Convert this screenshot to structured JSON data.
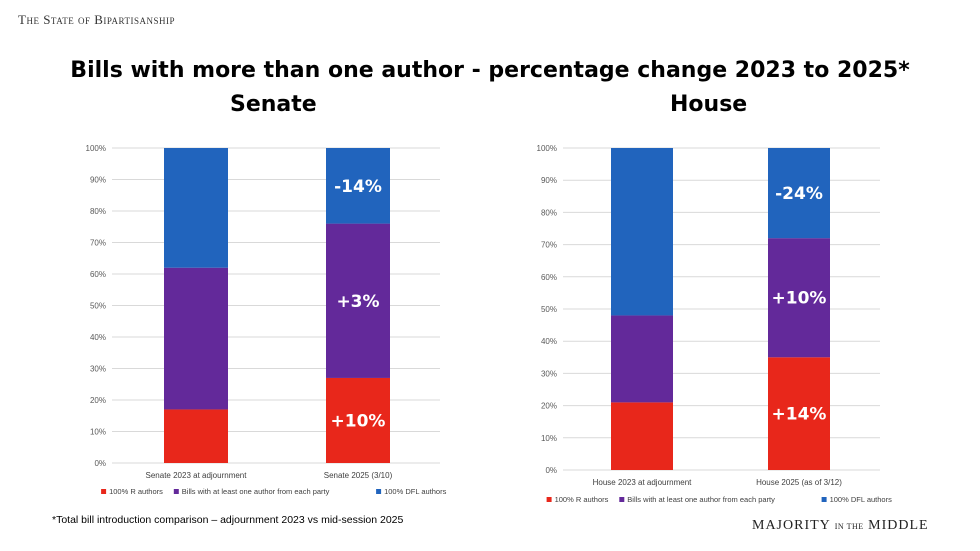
{
  "header": {
    "tag": "The State of Bipartisanship"
  },
  "title": "Bills with more than one author - percentage change 2023 to 2025*",
  "footnote": "*Total bill introduction comparison – adjournment 2023 vs mid-session 2025",
  "brand": {
    "main1": "MAJORITY",
    "small": "IN THE",
    "main2": "MIDDLE"
  },
  "colors": {
    "r": "#e8271b",
    "both": "#63299a",
    "dfl": "#2164bd"
  },
  "chart_data": [
    {
      "type": "bar",
      "stacked": true,
      "title": "Senate",
      "categories": [
        "Senate 2023 at adjournment",
        "Senate 2025 (3/10)"
      ],
      "ylim": [
        0,
        100
      ],
      "yticks": [
        "0%",
        "10%",
        "20%",
        "30%",
        "40%",
        "50%",
        "60%",
        "70%",
        "80%",
        "90%",
        "100%"
      ],
      "grid": true,
      "legend_position": "bottom",
      "series": [
        {
          "name": "100% R authors",
          "color": "#e8271b",
          "values": [
            17,
            27
          ],
          "labels": [
            "",
            "+10%"
          ]
        },
        {
          "name": "Bills with at least one author from each party",
          "color": "#63299a",
          "values": [
            45,
            49
          ],
          "labels": [
            "",
            "+3%"
          ]
        },
        {
          "name": "100% DFL authors",
          "color": "#2164bd",
          "values": [
            38,
            24
          ],
          "labels": [
            "",
            "-14%"
          ]
        }
      ]
    },
    {
      "type": "bar",
      "stacked": true,
      "title": "House",
      "categories": [
        "House 2023 at adjournment",
        "House 2025 (as of 3/12)"
      ],
      "ylim": [
        0,
        100
      ],
      "yticks": [
        "0%",
        "10%",
        "20%",
        "30%",
        "40%",
        "50%",
        "60%",
        "70%",
        "80%",
        "90%",
        "100%"
      ],
      "grid": true,
      "legend_position": "bottom",
      "series": [
        {
          "name": "100% R authors",
          "color": "#e8271b",
          "values": [
            21,
            35
          ],
          "labels": [
            "",
            "+14%"
          ]
        },
        {
          "name": "Bills with at least one author from each party",
          "color": "#63299a",
          "values": [
            27,
            37
          ],
          "labels": [
            "",
            "+10%"
          ]
        },
        {
          "name": "100% DFL authors",
          "color": "#2164bd",
          "values": [
            52,
            28
          ],
          "labels": [
            "",
            "-24%"
          ]
        }
      ]
    }
  ]
}
